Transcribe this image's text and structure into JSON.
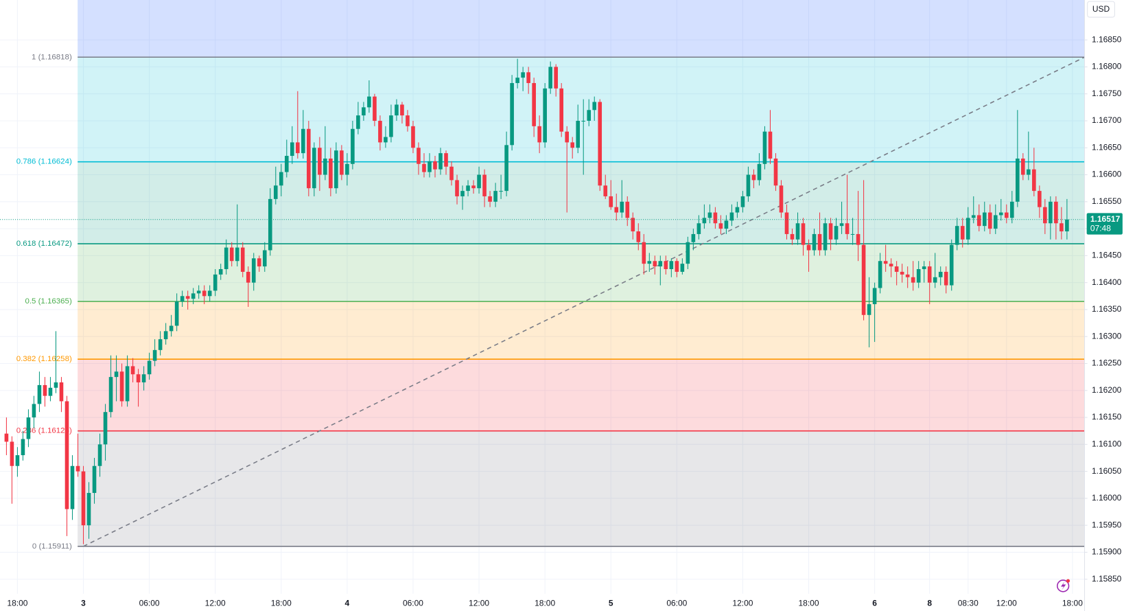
{
  "chart_data": {
    "type": "candlestick",
    "currency": "USD",
    "up_color": "#089981",
    "down_color": "#f23645",
    "grid": true,
    "xlim": [
      -1.17,
      196.2
    ],
    "ylim": [
      1.15823,
      1.16924
    ],
    "yticks": [
      {
        "value": 1.1585,
        "label": "1.15850"
      },
      {
        "value": 1.159,
        "label": "1.15900"
      },
      {
        "value": 1.1595,
        "label": "1.15950"
      },
      {
        "value": 1.16,
        "label": "1.16000"
      },
      {
        "value": 1.1605,
        "label": "1.16050"
      },
      {
        "value": 1.161,
        "label": "1.16100"
      },
      {
        "value": 1.1615,
        "label": "1.16150"
      },
      {
        "value": 1.162,
        "label": "1.16200"
      },
      {
        "value": 1.1625,
        "label": "1.16250"
      },
      {
        "value": 1.163,
        "label": "1.16300"
      },
      {
        "value": 1.1635,
        "label": "1.16350"
      },
      {
        "value": 1.164,
        "label": "1.16400"
      },
      {
        "value": 1.1645,
        "label": "1.16450"
      },
      {
        "value": 1.165,
        "label": "1.16500"
      },
      {
        "value": 1.1655,
        "label": "1.16550"
      },
      {
        "value": 1.166,
        "label": "1.16600"
      },
      {
        "value": 1.1665,
        "label": "1.16650"
      },
      {
        "value": 1.167,
        "label": "1.16700"
      },
      {
        "value": 1.1675,
        "label": "1.16750"
      },
      {
        "value": 1.168,
        "label": "1.16800"
      },
      {
        "value": 1.1685,
        "label": "1.16850"
      }
    ],
    "xticks": [
      {
        "value": 2,
        "label": "18:00"
      },
      {
        "value": 14,
        "label": "3"
      },
      {
        "value": 26,
        "label": "06:00"
      },
      {
        "value": 38,
        "label": "12:00"
      },
      {
        "value": 50,
        "label": "18:00"
      },
      {
        "value": 62,
        "label": "4"
      },
      {
        "value": 74,
        "label": "06:00"
      },
      {
        "value": 86,
        "label": "12:00"
      },
      {
        "value": 98,
        "label": "18:00"
      },
      {
        "value": 110,
        "label": "5"
      },
      {
        "value": 122,
        "label": "06:00"
      },
      {
        "value": 134,
        "label": "12:00"
      },
      {
        "value": 146,
        "label": "18:00"
      },
      {
        "value": 158,
        "label": "6"
      },
      {
        "value": 168,
        "label": "8"
      },
      {
        "value": 175,
        "label": "08:30"
      },
      {
        "value": 182,
        "label": "12:00"
      },
      {
        "value": 194,
        "label": "18:00"
      }
    ],
    "last_price": 1.16517,
    "countdown": "07:48",
    "fib_levels": [
      {
        "label": "1 (1.16818)",
        "value": 1.16818,
        "color": "#787b86"
      },
      {
        "label": "0.786 (1.16624)",
        "value": 1.16624,
        "color": "#00bcd4"
      },
      {
        "label": "0.618 (1.16472)",
        "value": 1.16472,
        "color": "#089981"
      },
      {
        "label": "0.5 (1.16365)",
        "value": 1.16365,
        "color": "#4caf50"
      },
      {
        "label": "0.382 (1.16258)",
        "value": 1.16258,
        "color": "#ff9800"
      },
      {
        "label": "0.236 (1.16125)",
        "value": 1.16125,
        "color": "#f23645"
      },
      {
        "label": "0 (1.15911)",
        "value": 1.15911,
        "color": "#787b86"
      }
    ],
    "ohlc": [
      [
        1.1612,
        1.1615,
        1.1608,
        1.16105
      ],
      [
        1.16105,
        1.16115,
        1.1599,
        1.1606
      ],
      [
        1.1606,
        1.16095,
        1.1604,
        1.1608
      ],
      [
        1.1608,
        1.16125,
        1.1607,
        1.1611
      ],
      [
        1.1611,
        1.16165,
        1.16095,
        1.1615
      ],
      [
        1.1615,
        1.1619,
        1.1613,
        1.16175
      ],
      [
        1.16175,
        1.16235,
        1.1616,
        1.1621
      ],
      [
        1.1621,
        1.16225,
        1.1617,
        1.1619
      ],
      [
        1.1619,
        1.16225,
        1.1618,
        1.16205
      ],
      [
        1.16205,
        1.1631,
        1.16195,
        1.16215
      ],
      [
        1.16215,
        1.16225,
        1.1616,
        1.1618
      ],
      [
        1.1618,
        1.1619,
        1.1593,
        1.1598
      ],
      [
        1.1598,
        1.1608,
        1.1596,
        1.1606
      ],
      [
        1.1606,
        1.1612,
        1.1604,
        1.1605
      ],
      [
        1.1605,
        1.1606,
        1.15915,
        1.1595
      ],
      [
        1.1595,
        1.1603,
        1.15925,
        1.1601
      ],
      [
        1.1601,
        1.16075,
        1.1599,
        1.1606
      ],
      [
        1.1606,
        1.1612,
        1.1604,
        1.161
      ],
      [
        1.161,
        1.16175,
        1.1607,
        1.1616
      ],
      [
        1.1616,
        1.16265,
        1.1615,
        1.16225
      ],
      [
        1.16225,
        1.16265,
        1.1618,
        1.16235
      ],
      [
        1.16235,
        1.1625,
        1.1617,
        1.1618
      ],
      [
        1.1618,
        1.16265,
        1.1617,
        1.16245
      ],
      [
        1.16245,
        1.1626,
        1.16215,
        1.1623
      ],
      [
        1.1623,
        1.1624,
        1.1617,
        1.16215
      ],
      [
        1.16215,
        1.16245,
        1.162,
        1.1623
      ],
      [
        1.1623,
        1.1627,
        1.1622,
        1.16255
      ],
      [
        1.16255,
        1.16295,
        1.16245,
        1.16275
      ],
      [
        1.16275,
        1.1631,
        1.16265,
        1.16295
      ],
      [
        1.16295,
        1.16325,
        1.16285,
        1.1631
      ],
      [
        1.1631,
        1.1634,
        1.163,
        1.1632
      ],
      [
        1.1632,
        1.1638,
        1.1631,
        1.16365
      ],
      [
        1.16365,
        1.16385,
        1.16355,
        1.16375
      ],
      [
        1.16375,
        1.16385,
        1.1635,
        1.1637
      ],
      [
        1.1637,
        1.1639,
        1.1636,
        1.1638
      ],
      [
        1.1638,
        1.16395,
        1.1637,
        1.16385
      ],
      [
        1.16385,
        1.16395,
        1.1636,
        1.16375
      ],
      [
        1.16375,
        1.16395,
        1.16365,
        1.16385
      ],
      [
        1.16385,
        1.16425,
        1.16375,
        1.16415
      ],
      [
        1.16415,
        1.16435,
        1.16405,
        1.16425
      ],
      [
        1.16425,
        1.1648,
        1.16415,
        1.16465
      ],
      [
        1.16465,
        1.16475,
        1.1643,
        1.1644
      ],
      [
        1.1644,
        1.16545,
        1.1643,
        1.16465
      ],
      [
        1.16465,
        1.16475,
        1.1641,
        1.1642
      ],
      [
        1.1642,
        1.1643,
        1.16355,
        1.164
      ],
      [
        1.164,
        1.16455,
        1.16385,
        1.16445
      ],
      [
        1.16445,
        1.1645,
        1.1642,
        1.1643
      ],
      [
        1.1643,
        1.16475,
        1.1642,
        1.1646
      ],
      [
        1.1646,
        1.16575,
        1.1645,
        1.16555
      ],
      [
        1.16555,
        1.16615,
        1.16545,
        1.1658
      ],
      [
        1.1658,
        1.1662,
        1.1656,
        1.16605
      ],
      [
        1.16605,
        1.16665,
        1.16595,
        1.16635
      ],
      [
        1.16635,
        1.1669,
        1.1662,
        1.1666
      ],
      [
        1.1666,
        1.16755,
        1.1663,
        1.1664
      ],
      [
        1.1664,
        1.1672,
        1.1663,
        1.16685
      ],
      [
        1.16685,
        1.167,
        1.1656,
        1.16575
      ],
      [
        1.16575,
        1.1666,
        1.1656,
        1.1665
      ],
      [
        1.1665,
        1.1667,
        1.1657,
        1.166
      ],
      [
        1.166,
        1.1669,
        1.1659,
        1.1663
      ],
      [
        1.1663,
        1.1665,
        1.1656,
        1.16575
      ],
      [
        1.16575,
        1.1666,
        1.16565,
        1.16645
      ],
      [
        1.16645,
        1.16655,
        1.1659,
        1.166
      ],
      [
        1.166,
        1.1664,
        1.1658,
        1.1662
      ],
      [
        1.1662,
        1.167,
        1.1661,
        1.16685
      ],
      [
        1.16685,
        1.16735,
        1.16675,
        1.1671
      ],
      [
        1.1671,
        1.16735,
        1.167,
        1.16725
      ],
      [
        1.16725,
        1.16775,
        1.16715,
        1.16745
      ],
      [
        1.16745,
        1.1675,
        1.1669,
        1.167
      ],
      [
        1.167,
        1.1671,
        1.16645,
        1.1666
      ],
      [
        1.1666,
        1.1669,
        1.1665,
        1.1667
      ],
      [
        1.1667,
        1.1673,
        1.1666,
        1.1671
      ],
      [
        1.1671,
        1.1674,
        1.167,
        1.1673
      ],
      [
        1.1673,
        1.16735,
        1.16695,
        1.1671
      ],
      [
        1.1671,
        1.1672,
        1.1668,
        1.1669
      ],
      [
        1.1669,
        1.167,
        1.1664,
        1.1665
      ],
      [
        1.1665,
        1.1666,
        1.166,
        1.1662
      ],
      [
        1.1662,
        1.1664,
        1.16595,
        1.16605
      ],
      [
        1.16605,
        1.1664,
        1.16595,
        1.16625
      ],
      [
        1.16625,
        1.16635,
        1.16595,
        1.1661
      ],
      [
        1.1661,
        1.1665,
        1.166,
        1.1664
      ],
      [
        1.1664,
        1.16645,
        1.166,
        1.16615
      ],
      [
        1.16615,
        1.16625,
        1.1658,
        1.1659
      ],
      [
        1.1659,
        1.166,
        1.16545,
        1.1656
      ],
      [
        1.1656,
        1.1658,
        1.16535,
        1.1657
      ],
      [
        1.1657,
        1.1659,
        1.1656,
        1.1658
      ],
      [
        1.1658,
        1.1659,
        1.16565,
        1.16575
      ],
      [
        1.16575,
        1.16615,
        1.16565,
        1.166
      ],
      [
        1.166,
        1.1661,
        1.1654,
        1.1656
      ],
      [
        1.1656,
        1.1657,
        1.1654,
        1.1655
      ],
      [
        1.1655,
        1.16585,
        1.1654,
        1.1657
      ],
      [
        1.1657,
        1.166,
        1.16555,
        1.1657
      ],
      [
        1.1657,
        1.1668,
        1.1656,
        1.16655
      ],
      [
        1.16655,
        1.16785,
        1.16645,
        1.1677
      ],
      [
        1.1677,
        1.16815,
        1.1676,
        1.1678
      ],
      [
        1.1678,
        1.168,
        1.16755,
        1.1679
      ],
      [
        1.1679,
        1.168,
        1.1675,
        1.1677
      ],
      [
        1.1677,
        1.1678,
        1.1667,
        1.1669
      ],
      [
        1.1669,
        1.1671,
        1.1664,
        1.1666
      ],
      [
        1.1666,
        1.1677,
        1.1665,
        1.1676
      ],
      [
        1.1676,
        1.1681,
        1.1675,
        1.168
      ],
      [
        1.168,
        1.16805,
        1.16745,
        1.1676
      ],
      [
        1.1676,
        1.1677,
        1.1667,
        1.1668
      ],
      [
        1.1668,
        1.1669,
        1.1653,
        1.1666
      ],
      [
        1.1666,
        1.1667,
        1.1663,
        1.1665
      ],
      [
        1.1665,
        1.1673,
        1.1664,
        1.167
      ],
      [
        1.167,
        1.1674,
        1.166,
        1.167
      ],
      [
        1.167,
        1.1674,
        1.1669,
        1.1672
      ],
      [
        1.1672,
        1.16745,
        1.167,
        1.16735
      ],
      [
        1.16735,
        1.1674,
        1.1657,
        1.1658
      ],
      [
        1.1658,
        1.166,
        1.16555,
        1.1656
      ],
      [
        1.1656,
        1.1659,
        1.16535,
        1.1654
      ],
      [
        1.1654,
        1.16565,
        1.16515,
        1.1653
      ],
      [
        1.1653,
        1.1659,
        1.1652,
        1.1655
      ],
      [
        1.1655,
        1.1656,
        1.16505,
        1.1652
      ],
      [
        1.1652,
        1.1653,
        1.1648,
        1.16495
      ],
      [
        1.16495,
        1.1651,
        1.1646,
        1.16475
      ],
      [
        1.16475,
        1.1649,
        1.16415,
        1.16435
      ],
      [
        1.16435,
        1.16455,
        1.1642,
        1.1644
      ],
      [
        1.1644,
        1.1645,
        1.16415,
        1.1643
      ],
      [
        1.1643,
        1.1645,
        1.16395,
        1.1644
      ],
      [
        1.1644,
        1.1645,
        1.16415,
        1.16425
      ],
      [
        1.16425,
        1.16445,
        1.1641,
        1.1644
      ],
      [
        1.1644,
        1.16445,
        1.1641,
        1.1642
      ],
      [
        1.1642,
        1.16445,
        1.16415,
        1.16435
      ],
      [
        1.16435,
        1.16485,
        1.16425,
        1.16475
      ],
      [
        1.16475,
        1.165,
        1.1646,
        1.1649
      ],
      [
        1.1649,
        1.16525,
        1.1648,
        1.1651
      ],
      [
        1.1651,
        1.16545,
        1.165,
        1.1652
      ],
      [
        1.1652,
        1.16545,
        1.1651,
        1.1653
      ],
      [
        1.1653,
        1.1654,
        1.165,
        1.1651
      ],
      [
        1.1651,
        1.16525,
        1.1649,
        1.165
      ],
      [
        1.165,
        1.16525,
        1.1649,
        1.16515
      ],
      [
        1.16515,
        1.16545,
        1.16505,
        1.1653
      ],
      [
        1.1653,
        1.1655,
        1.1652,
        1.1654
      ],
      [
        1.1654,
        1.1657,
        1.1653,
        1.1656
      ],
      [
        1.1656,
        1.16615,
        1.1655,
        1.166
      ],
      [
        1.166,
        1.1661,
        1.16575,
        1.1659
      ],
      [
        1.1659,
        1.1664,
        1.1658,
        1.1662
      ],
      [
        1.1662,
        1.1669,
        1.1661,
        1.1668
      ],
      [
        1.1668,
        1.1672,
        1.1662,
        1.1663
      ],
      [
        1.1663,
        1.1664,
        1.1657,
        1.1658
      ],
      [
        1.1658,
        1.1659,
        1.1652,
        1.1653
      ],
      [
        1.1653,
        1.16545,
        1.1648,
        1.1649
      ],
      [
        1.1649,
        1.165,
        1.1647,
        1.1648
      ],
      [
        1.1648,
        1.1653,
        1.1647,
        1.1651
      ],
      [
        1.1651,
        1.1652,
        1.1645,
        1.1647
      ],
      [
        1.1647,
        1.1648,
        1.1642,
        1.1646
      ],
      [
        1.1646,
        1.165,
        1.1645,
        1.1649
      ],
      [
        1.1649,
        1.1653,
        1.1645,
        1.1646
      ],
      [
        1.1646,
        1.1652,
        1.1645,
        1.1651
      ],
      [
        1.1651,
        1.1652,
        1.1646,
        1.1648
      ],
      [
        1.1648,
        1.1652,
        1.1647,
        1.16505
      ],
      [
        1.16505,
        1.1655,
        1.1649,
        1.1651
      ],
      [
        1.1651,
        1.166,
        1.1648,
        1.1649
      ],
      [
        1.1649,
        1.1652,
        1.1647,
        1.1649
      ],
      [
        1.1649,
        1.1657,
        1.1644,
        1.1647
      ],
      [
        1.1647,
        1.1659,
        1.1633,
        1.1634
      ],
      [
        1.1634,
        1.1641,
        1.1628,
        1.1636
      ],
      [
        1.1636,
        1.164,
        1.1629,
        1.1639
      ],
      [
        1.1639,
        1.16455,
        1.1638,
        1.1644
      ],
      [
        1.1644,
        1.1647,
        1.1642,
        1.16435
      ],
      [
        1.16435,
        1.16445,
        1.1641,
        1.1643
      ],
      [
        1.1643,
        1.1644,
        1.16395,
        1.1642
      ],
      [
        1.1642,
        1.16435,
        1.164,
        1.16415
      ],
      [
        1.16415,
        1.1643,
        1.1639,
        1.1641
      ],
      [
        1.1641,
        1.1644,
        1.16385,
        1.164
      ],
      [
        1.164,
        1.1644,
        1.1639,
        1.16425
      ],
      [
        1.16425,
        1.1644,
        1.164,
        1.1643
      ],
      [
        1.1643,
        1.1644,
        1.1636,
        1.164
      ],
      [
        1.164,
        1.16455,
        1.1639,
        1.1641
      ],
      [
        1.1641,
        1.1643,
        1.16395,
        1.1642
      ],
      [
        1.1642,
        1.1643,
        1.1638,
        1.16395
      ],
      [
        1.16395,
        1.1648,
        1.16385,
        1.1647
      ],
      [
        1.1647,
        1.1652,
        1.1646,
        1.16505
      ],
      [
        1.16505,
        1.1652,
        1.16465,
        1.1648
      ],
      [
        1.1648,
        1.1654,
        1.1647,
        1.1652
      ],
      [
        1.1652,
        1.1656,
        1.1651,
        1.16525
      ],
      [
        1.16525,
        1.16545,
        1.16495,
        1.16505
      ],
      [
        1.16505,
        1.1655,
        1.16495,
        1.1653
      ],
      [
        1.1653,
        1.16545,
        1.1649,
        1.165
      ],
      [
        1.165,
        1.16545,
        1.1649,
        1.16525
      ],
      [
        1.16525,
        1.16555,
        1.16515,
        1.1653
      ],
      [
        1.1653,
        1.16545,
        1.1651,
        1.1652
      ],
      [
        1.1652,
        1.1657,
        1.1651,
        1.1655
      ],
      [
        1.1655,
        1.1672,
        1.1654,
        1.1663
      ],
      [
        1.1663,
        1.1664,
        1.1659,
        1.166
      ],
      [
        1.166,
        1.1668,
        1.1659,
        1.1661
      ],
      [
        1.1661,
        1.1665,
        1.1656,
        1.1657
      ],
      [
        1.1657,
        1.1658,
        1.1652,
        1.1654
      ],
      [
        1.1654,
        1.16555,
        1.1649,
        1.1651
      ],
      [
        1.1651,
        1.1656,
        1.1648,
        1.1655
      ],
      [
        1.1655,
        1.1656,
        1.1648,
        1.1651
      ],
      [
        1.1651,
        1.1654,
        1.1648,
        1.16495
      ],
      [
        1.16495,
        1.16555,
        1.1648,
        1.16517
      ]
    ]
  }
}
